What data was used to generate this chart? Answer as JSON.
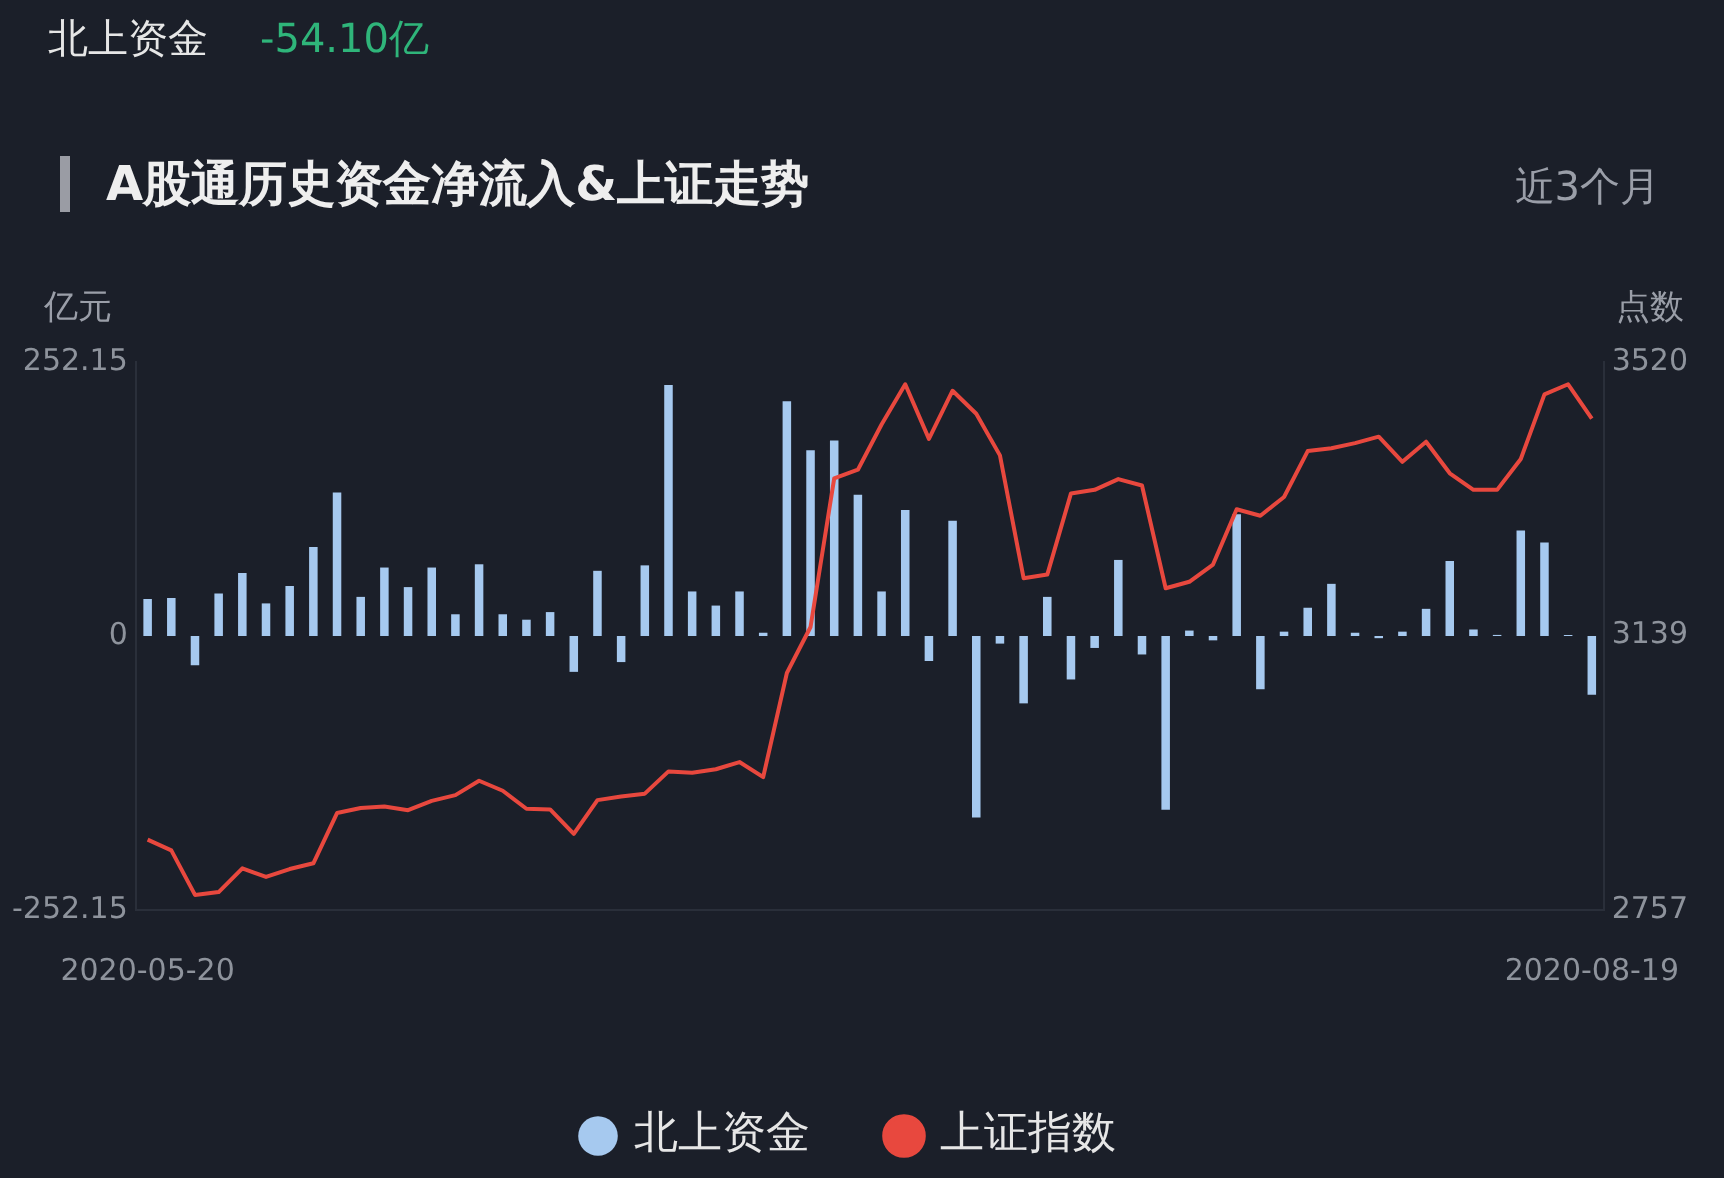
{
  "chart_data": {
    "type": "bar",
    "title": "A股通历史资金净流入&上证走势",
    "annotations": [
      "北上资金",
      "-54.10亿",
      "近3个月"
    ],
    "ylabel": "亿元",
    "y2label": "点数",
    "categories": [
      "2020-05-20",
      null,
      null,
      null,
      null,
      null,
      null,
      null,
      null,
      null,
      null,
      null,
      null,
      null,
      null,
      null,
      null,
      null,
      null,
      null,
      null,
      null,
      null,
      null,
      null,
      null,
      null,
      null,
      null,
      null,
      null,
      null,
      null,
      null,
      null,
      null,
      null,
      null,
      null,
      null,
      null,
      null,
      null,
      null,
      null,
      null,
      null,
      null,
      null,
      null,
      null,
      null,
      null,
      null,
      null,
      null,
      null,
      null,
      null,
      null,
      null,
      "2020-08-19"
    ],
    "series": [
      {
        "name": "北上资金",
        "color": "#a6c9ef",
        "values": [
          34,
          35,
          -27,
          39,
          58,
          30,
          46,
          82,
          132,
          36,
          63,
          45,
          63,
          20,
          66,
          20,
          15,
          22,
          -33,
          60,
          -24,
          65,
          231,
          41,
          28,
          41,
          3,
          216,
          171,
          180,
          130,
          41,
          116,
          -23,
          106,
          -167,
          -7,
          -62,
          36,
          -40,
          -11,
          70,
          -17,
          -160,
          5,
          -4,
          112,
          -49,
          4,
          26,
          48,
          3,
          -2,
          4,
          25,
          69,
          6,
          1,
          97,
          86,
          1,
          -54.1
        ]
      },
      {
        "name": "上证指数",
        "type": "line",
        "axis": "y2",
        "color": "#e8483e",
        "values": [
          2855,
          2840,
          2778,
          2782,
          2815,
          2803,
          2814,
          2822,
          2892,
          2899,
          2901,
          2896,
          2909,
          2917,
          2937,
          2923,
          2898,
          2897,
          2863,
          2910,
          2915,
          2919,
          2950,
          2948,
          2953,
          2963,
          2942,
          3087,
          3151,
          3358,
          3370,
          3433,
          3489,
          3413,
          3480,
          3448,
          3390,
          3219,
          3224,
          3337,
          3342,
          3357,
          3348,
          3205,
          3214,
          3238,
          3315,
          3306,
          3332,
          3396,
          3400,
          3407,
          3416,
          3381,
          3409,
          3365,
          3342,
          3342,
          3385,
          3475,
          3489,
          3441
        ]
      }
    ],
    "ylim": [
      -252.15,
      252.15
    ],
    "yticks": [
      -252.15,
      0,
      252.15
    ],
    "y2lim": [
      2757,
      3520
    ],
    "y2ticks": [
      2757,
      3139,
      3520
    ],
    "grid": false,
    "legend": "bottom",
    "marker": "none"
  }
}
